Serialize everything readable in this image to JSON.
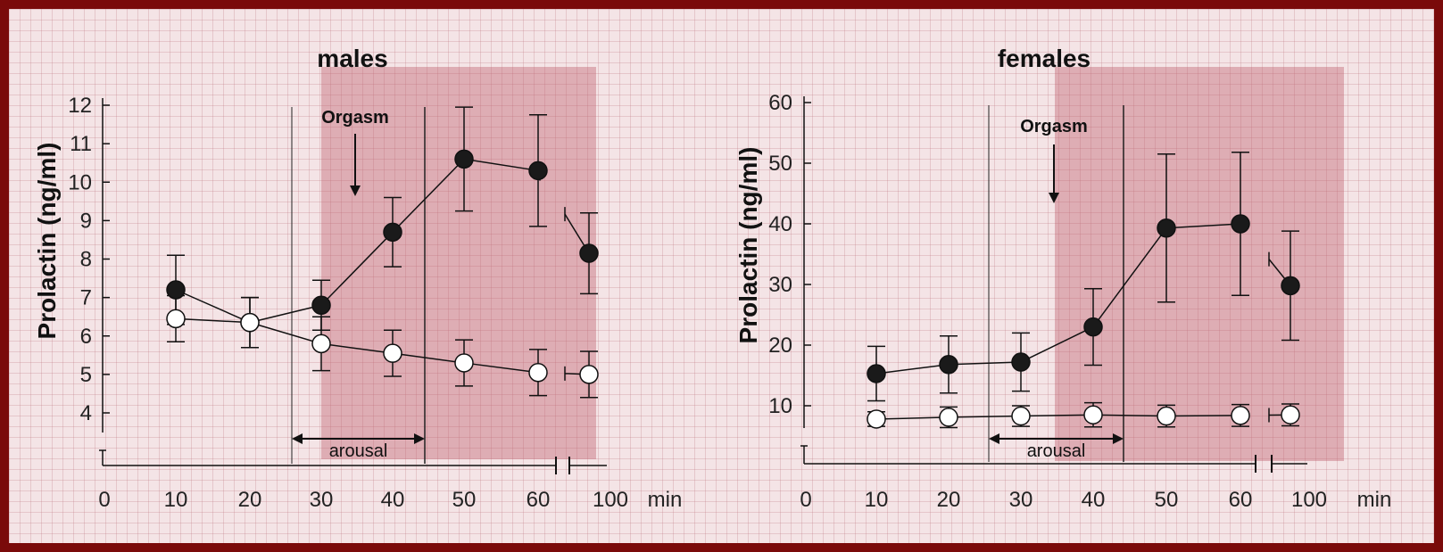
{
  "chart_data": [
    {
      "type": "line",
      "title": "males",
      "ylabel": "Prolactin (ng/ml)",
      "xunit": "min",
      "ylim": [
        3.5,
        12
      ],
      "yticks": [
        4,
        5,
        6,
        7,
        8,
        9,
        10,
        11,
        12
      ],
      "xticks": [
        "0",
        "10",
        "20",
        "30",
        "40",
        "50",
        "60",
        "100"
      ],
      "annotations": {
        "event": "Orgasm",
        "phase": "arousal"
      },
      "series": [
        {
          "marker": "filled",
          "x": [
            "10",
            "20",
            "30",
            "40",
            "50",
            "60",
            "100"
          ],
          "values": [
            7.2,
            6.35,
            6.8,
            8.7,
            10.6,
            10.3,
            8.15
          ],
          "err": [
            0.9,
            0.65,
            0.65,
            0.9,
            1.35,
            1.45,
            1.05
          ]
        },
        {
          "marker": "open",
          "x": [
            "10",
            "20",
            "30",
            "40",
            "50",
            "60",
            "100"
          ],
          "values": [
            6.45,
            6.35,
            5.8,
            5.55,
            5.3,
            5.05,
            5.0
          ],
          "err": [
            0.6,
            0.65,
            0.7,
            0.6,
            0.6,
            0.6,
            0.6
          ]
        }
      ]
    },
    {
      "type": "line",
      "title": "females",
      "ylabel": "Prolactin (ng/ml)",
      "xunit": "min",
      "ylim": [
        5,
        60
      ],
      "yticks": [
        10,
        20,
        30,
        40,
        50,
        60
      ],
      "xticks": [
        "0",
        "10",
        "20",
        "30",
        "40",
        "50",
        "60",
        "100"
      ],
      "annotations": {
        "event": "Orgasm",
        "phase": "arousal"
      },
      "series": [
        {
          "marker": "filled",
          "x": [
            "10",
            "20",
            "30",
            "40",
            "50",
            "60",
            "100"
          ],
          "values": [
            15.3,
            16.8,
            17.2,
            23,
            39.3,
            40,
            29.8
          ],
          "err": [
            4.5,
            4.7,
            4.8,
            6.3,
            12.2,
            11.8,
            9
          ]
        },
        {
          "marker": "open",
          "x": [
            "10",
            "20",
            "30",
            "40",
            "50",
            "60",
            "100"
          ],
          "values": [
            7.8,
            8.1,
            8.3,
            8.5,
            8.3,
            8.4,
            8.5
          ],
          "err": [
            1.2,
            1.7,
            1.7,
            2.0,
            1.8,
            1.8,
            1.8
          ]
        }
      ]
    }
  ]
}
